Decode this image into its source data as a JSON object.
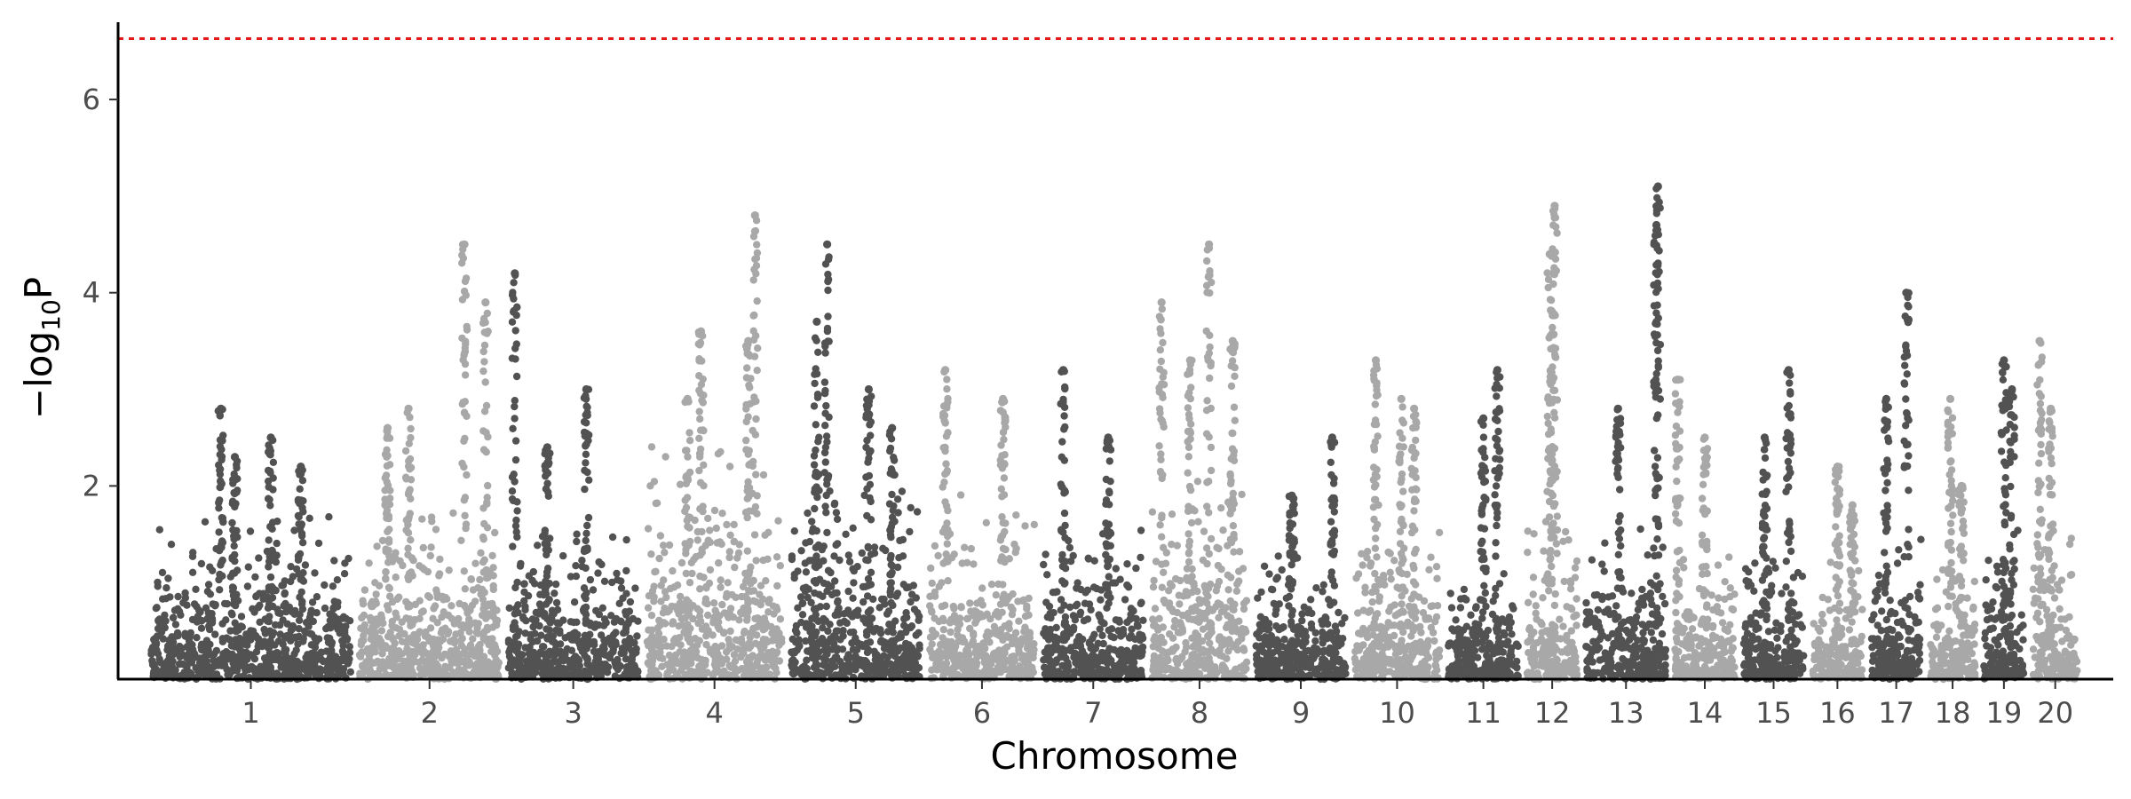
{
  "chart_data": {
    "type": "scatter",
    "subtype": "manhattan",
    "title": "",
    "xlabel": "Chromosome",
    "ylabel": "−log10P",
    "ylabel_parts": {
      "prefix": "−log",
      "subscript": "10",
      "suffix": "P"
    },
    "ylim": [
      0,
      6.8
    ],
    "yticks": [
      2,
      4,
      6
    ],
    "grid": false,
    "legend": "none",
    "threshold": {
      "value": 6.63,
      "color": "#e41a1c",
      "style": "dotted"
    },
    "colors": {
      "dark": "#525252",
      "light": "#a8a8a8"
    },
    "chromosomes": [
      {
        "label": "1",
        "length": 200,
        "color": "dark",
        "baseline": 1.0,
        "peaks": [
          [
            0.35,
            2.8
          ],
          [
            0.6,
            2.5
          ],
          [
            0.42,
            2.3
          ],
          [
            0.75,
            2.2
          ]
        ]
      },
      {
        "label": "2",
        "length": 140,
        "color": "light",
        "baseline": 1.0,
        "peaks": [
          [
            0.75,
            4.5
          ],
          [
            0.35,
            2.8
          ],
          [
            0.2,
            2.6
          ],
          [
            0.9,
            3.9
          ]
        ]
      },
      {
        "label": "3",
        "length": 130,
        "color": "dark",
        "baseline": 0.9,
        "peaks": [
          [
            0.05,
            4.2
          ],
          [
            0.6,
            3.0
          ],
          [
            0.3,
            2.4
          ]
        ]
      },
      {
        "label": "4",
        "length": 135,
        "color": "light",
        "baseline": 1.4,
        "peaks": [
          [
            0.8,
            4.8
          ],
          [
            0.4,
            3.6
          ],
          [
            0.75,
            3.5
          ],
          [
            0.3,
            2.9
          ]
        ]
      },
      {
        "label": "5",
        "length": 130,
        "color": "dark",
        "baseline": 1.2,
        "peaks": [
          [
            0.2,
            3.7
          ],
          [
            0.28,
            4.5
          ],
          [
            0.6,
            3.0
          ],
          [
            0.78,
            2.6
          ]
        ]
      },
      {
        "label": "6",
        "length": 105,
        "color": "light",
        "baseline": 1.1,
        "peaks": [
          [
            0.15,
            3.2
          ],
          [
            0.7,
            2.9
          ]
        ]
      },
      {
        "label": "7",
        "length": 100,
        "color": "dark",
        "baseline": 0.9,
        "peaks": [
          [
            0.2,
            3.2
          ],
          [
            0.65,
            2.5
          ]
        ]
      },
      {
        "label": "8",
        "length": 95,
        "color": "light",
        "baseline": 1.2,
        "peaks": [
          [
            0.1,
            3.9
          ],
          [
            0.6,
            4.5
          ],
          [
            0.85,
            3.5
          ],
          [
            0.4,
            3.3
          ]
        ]
      },
      {
        "label": "9",
        "length": 90,
        "color": "dark",
        "baseline": 0.8,
        "peaks": [
          [
            0.85,
            2.5
          ],
          [
            0.4,
            1.9
          ]
        ]
      },
      {
        "label": "10",
        "length": 85,
        "color": "light",
        "baseline": 1.0,
        "peaks": [
          [
            0.25,
            3.3
          ],
          [
            0.55,
            2.9
          ],
          [
            0.7,
            2.8
          ]
        ]
      },
      {
        "label": "11",
        "length": 70,
        "color": "dark",
        "baseline": 0.7,
        "peaks": [
          [
            0.7,
            3.2
          ],
          [
            0.5,
            2.7
          ]
        ]
      },
      {
        "label": "12",
        "length": 50,
        "color": "light",
        "baseline": 1.0,
        "peaks": [
          [
            0.55,
            4.9
          ],
          [
            0.45,
            4.4
          ],
          [
            0.5,
            3.8
          ]
        ]
      },
      {
        "label": "13",
        "length": 80,
        "color": "dark",
        "baseline": 0.9,
        "peaks": [
          [
            0.9,
            5.1
          ],
          [
            0.88,
            4.7
          ],
          [
            0.4,
            2.8
          ]
        ]
      },
      {
        "label": "14",
        "length": 60,
        "color": "light",
        "baseline": 0.8,
        "peaks": [
          [
            0.05,
            3.1
          ],
          [
            0.5,
            2.5
          ]
        ]
      },
      {
        "label": "15",
        "length": 60,
        "color": "dark",
        "baseline": 0.8,
        "peaks": [
          [
            0.75,
            3.2
          ],
          [
            0.35,
            2.5
          ]
        ]
      },
      {
        "label": "16",
        "length": 50,
        "color": "light",
        "baseline": 0.7,
        "peaks": [
          [
            0.5,
            2.2
          ],
          [
            0.8,
            1.8
          ]
        ]
      },
      {
        "label": "17",
        "length": 50,
        "color": "dark",
        "baseline": 0.9,
        "peaks": [
          [
            0.7,
            4.0
          ],
          [
            0.3,
            2.9
          ]
        ]
      },
      {
        "label": "18",
        "length": 45,
        "color": "light",
        "baseline": 0.8,
        "peaks": [
          [
            0.45,
            2.9
          ],
          [
            0.7,
            2.0
          ]
        ]
      },
      {
        "label": "19",
        "length": 40,
        "color": "dark",
        "baseline": 1.0,
        "peaks": [
          [
            0.5,
            3.3
          ],
          [
            0.7,
            3.0
          ]
        ]
      },
      {
        "label": "20",
        "length": 45,
        "color": "light",
        "baseline": 0.9,
        "peaks": [
          [
            0.15,
            3.5
          ],
          [
            0.4,
            2.8
          ]
        ]
      }
    ]
  }
}
